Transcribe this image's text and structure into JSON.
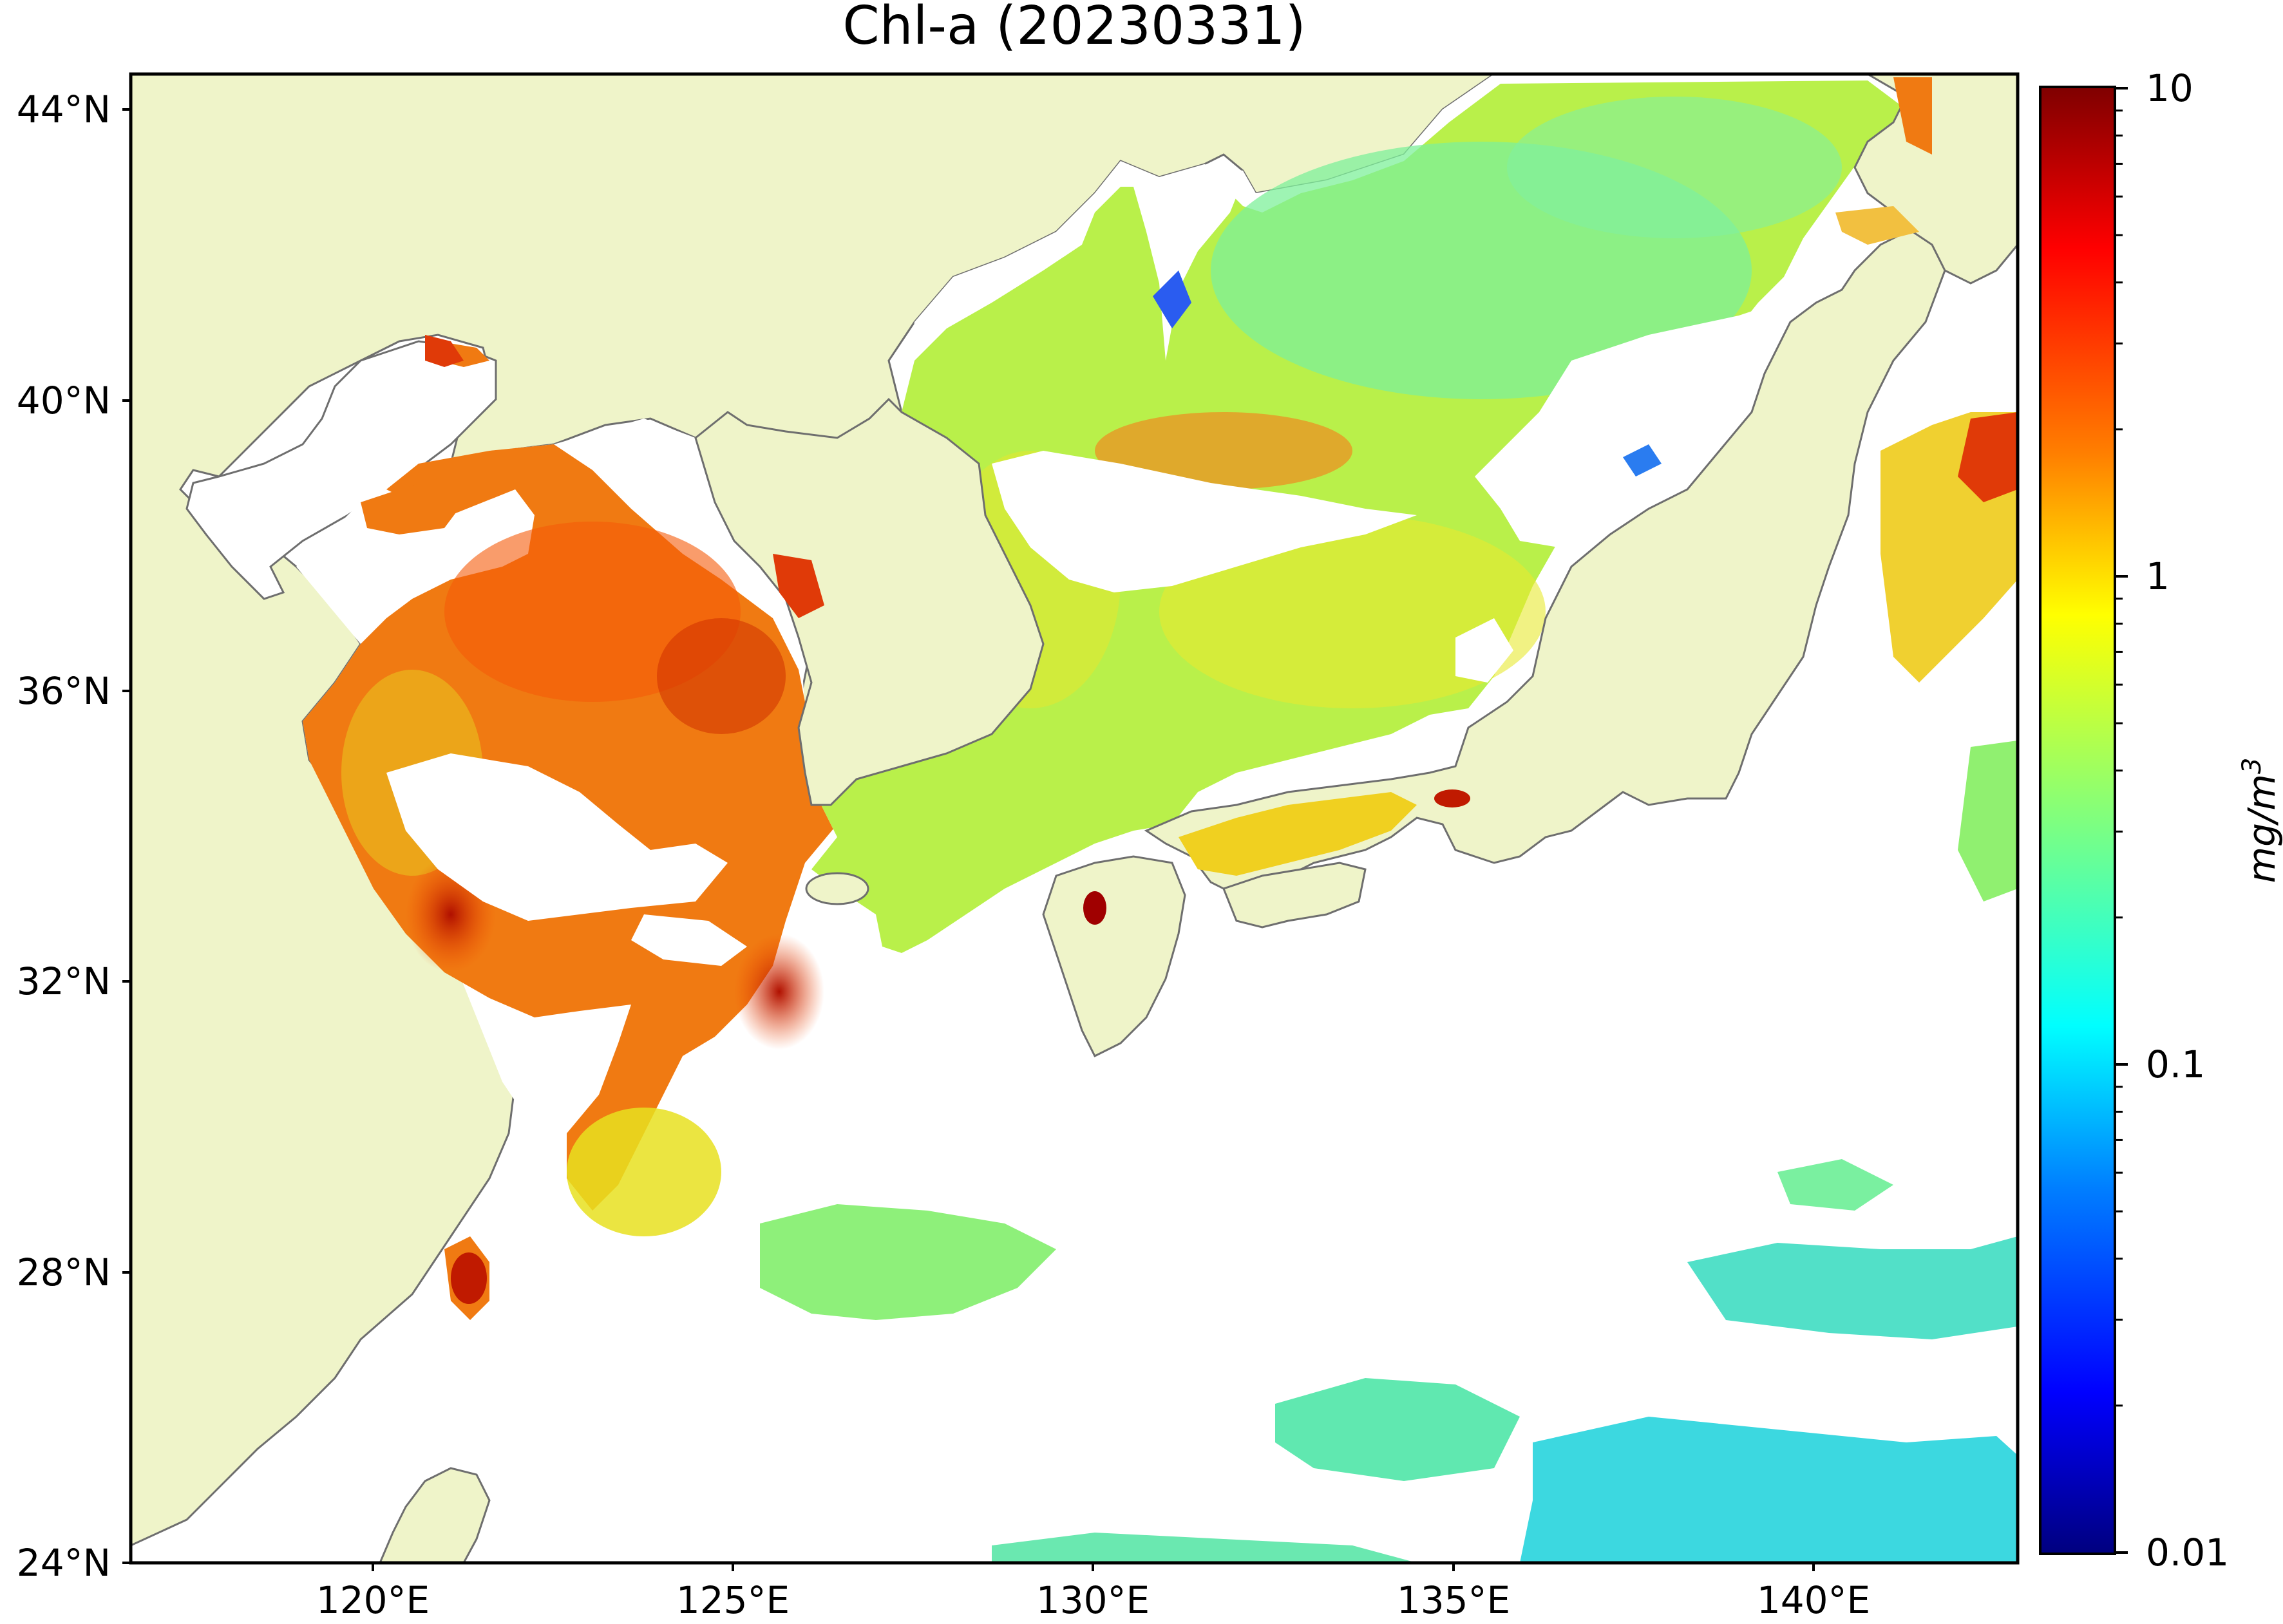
{
  "map": {
    "title": "Chl-a (20230331)",
    "lon_ticks": [
      "120°E",
      "125°E",
      "130°E",
      "135°E",
      "140°E"
    ],
    "lat_ticks": [
      "44°N",
      "40°N",
      "36°N",
      "32°N",
      "28°N",
      "24°N"
    ],
    "extent": {
      "lon_min": 116.8,
      "lon_max": 143.0,
      "lat_min": 24.0,
      "lat_max": 44.5
    },
    "colors": {
      "land": "#eff4c9",
      "coast": "#6e6e6e",
      "no_data": "#ffffff",
      "frame": "#000000"
    }
  },
  "colorbar": {
    "label": "mg/m",
    "label_superscript": "3",
    "scale": "log",
    "range": [
      0.01,
      10
    ],
    "tick_labels": [
      "10",
      "1",
      "0.1",
      "0.01"
    ],
    "colormap": "jet",
    "stops": [
      "#00007f",
      "#0000ff",
      "#007fff",
      "#00ffff",
      "#7fff7f",
      "#ffff00",
      "#ff7f00",
      "#ff0000",
      "#7f0000"
    ]
  }
}
